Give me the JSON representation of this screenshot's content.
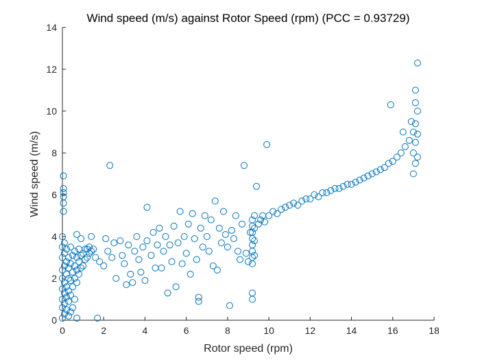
{
  "chart_data": {
    "type": "scatter",
    "title": "Wind speed (m/s) against Rotor Speed (rpm) (PCC = 0.93729)",
    "xlabel": "Rotor speed (rpm)",
    "ylabel": "Wind speed (m/s)",
    "xlim": [
      0,
      18
    ],
    "ylim": [
      0,
      14
    ],
    "xticks": [
      0,
      2,
      4,
      6,
      8,
      10,
      12,
      14,
      16,
      18
    ],
    "yticks": [
      0,
      2,
      4,
      6,
      8,
      10,
      12,
      14
    ],
    "grid": false,
    "marker": "open-circle",
    "color": "#0072BD",
    "series": [
      {
        "points": [
          [
            0.0,
            0.1
          ],
          [
            0.0,
            0.6
          ],
          [
            0.0,
            1.0
          ],
          [
            0.0,
            1.5
          ],
          [
            0.0,
            2.0
          ],
          [
            0.0,
            2.4
          ],
          [
            0.0,
            3.0
          ],
          [
            0.0,
            3.5
          ],
          [
            0.0,
            4.0
          ],
          [
            0.05,
            5.2
          ],
          [
            0.05,
            5.6
          ],
          [
            0.05,
            5.9
          ],
          [
            0.05,
            6.1
          ],
          [
            0.05,
            6.3
          ],
          [
            0.05,
            6.9
          ],
          [
            0.1,
            0.3
          ],
          [
            0.1,
            0.8
          ],
          [
            0.1,
            1.3
          ],
          [
            0.1,
            1.8
          ],
          [
            0.1,
            2.6
          ],
          [
            0.1,
            3.2
          ],
          [
            0.1,
            3.7
          ],
          [
            0.2,
            0.5
          ],
          [
            0.2,
            1.1
          ],
          [
            0.2,
            1.6
          ],
          [
            0.2,
            2.2
          ],
          [
            0.2,
            2.8
          ],
          [
            0.2,
            3.4
          ],
          [
            0.3,
            0.2
          ],
          [
            0.3,
            0.9
          ],
          [
            0.3,
            1.4
          ],
          [
            0.3,
            2.0
          ],
          [
            0.3,
            2.5
          ],
          [
            0.3,
            3.0
          ],
          [
            0.4,
            0.4
          ],
          [
            0.4,
            1.2
          ],
          [
            0.4,
            1.9
          ],
          [
            0.4,
            2.7
          ],
          [
            0.4,
            3.5
          ],
          [
            0.5,
            0.6
          ],
          [
            0.5,
            1.6
          ],
          [
            0.5,
            2.3
          ],
          [
            0.5,
            3.1
          ],
          [
            0.6,
            1.0
          ],
          [
            0.6,
            2.0
          ],
          [
            0.6,
            2.6
          ],
          [
            0.6,
            3.3
          ],
          [
            0.7,
            0.1
          ],
          [
            0.7,
            1.8
          ],
          [
            0.7,
            2.4
          ],
          [
            0.7,
            3.0
          ],
          [
            0.7,
            4.1
          ],
          [
            0.8,
            2.2
          ],
          [
            0.8,
            2.8
          ],
          [
            0.8,
            3.4
          ],
          [
            0.9,
            2.5
          ],
          [
            0.9,
            3.1
          ],
          [
            0.9,
            3.9
          ],
          [
            1.0,
            2.6
          ],
          [
            1.0,
            3.2
          ],
          [
            1.1,
            2.9
          ],
          [
            1.1,
            3.4
          ],
          [
            1.2,
            3.0
          ],
          [
            1.2,
            3.4
          ],
          [
            1.3,
            3.2
          ],
          [
            1.3,
            3.5
          ],
          [
            1.4,
            3.3
          ],
          [
            1.4,
            4.0
          ],
          [
            1.5,
            3.4
          ],
          [
            1.6,
            3.0
          ],
          [
            1.7,
            0.1
          ],
          [
            1.8,
            2.8
          ],
          [
            2.0,
            2.6
          ],
          [
            2.1,
            3.9
          ],
          [
            2.2,
            3.3
          ],
          [
            2.3,
            7.4
          ],
          [
            2.4,
            3.0
          ],
          [
            2.5,
            3.7
          ],
          [
            2.6,
            2.0
          ],
          [
            2.8,
            3.8
          ],
          [
            2.9,
            3.1
          ],
          [
            3.0,
            2.7
          ],
          [
            3.1,
            1.7
          ],
          [
            3.2,
            3.6
          ],
          [
            3.3,
            2.2
          ],
          [
            3.4,
            1.8
          ],
          [
            3.5,
            3.3
          ],
          [
            3.6,
            4.0
          ],
          [
            3.7,
            2.9
          ],
          [
            3.8,
            2.3
          ],
          [
            3.9,
            3.5
          ],
          [
            4.0,
            1.9
          ],
          [
            4.1,
            3.8
          ],
          [
            4.1,
            5.4
          ],
          [
            4.3,
            3.1
          ],
          [
            4.4,
            4.2
          ],
          [
            4.5,
            2.5
          ],
          [
            4.6,
            3.6
          ],
          [
            4.7,
            4.4
          ],
          [
            4.8,
            2.5
          ],
          [
            4.9,
            3.3
          ],
          [
            5.0,
            4.0
          ],
          [
            5.1,
            1.3
          ],
          [
            5.2,
            3.6
          ],
          [
            5.3,
            2.8
          ],
          [
            5.4,
            4.5
          ],
          [
            5.5,
            1.6
          ],
          [
            5.6,
            3.7
          ],
          [
            5.7,
            5.2
          ],
          [
            5.8,
            2.7
          ],
          [
            5.9,
            4.0
          ],
          [
            6.0,
            3.2
          ],
          [
            6.1,
            4.6
          ],
          [
            6.2,
            2.2
          ],
          [
            6.3,
            5.1
          ],
          [
            6.4,
            3.9
          ],
          [
            6.5,
            2.9
          ],
          [
            6.6,
            0.9
          ],
          [
            6.6,
            1.1
          ],
          [
            6.7,
            4.4
          ],
          [
            6.8,
            3.5
          ],
          [
            6.9,
            5.0
          ],
          [
            7.0,
            4.0
          ],
          [
            7.1,
            3.3
          ],
          [
            7.2,
            4.8
          ],
          [
            7.3,
            2.6
          ],
          [
            7.4,
            5.7
          ],
          [
            7.5,
            2.4
          ],
          [
            7.6,
            4.4
          ],
          [
            7.7,
            3.7
          ],
          [
            7.8,
            5.2
          ],
          [
            7.9,
            4.1
          ],
          [
            8.0,
            3.5
          ],
          [
            8.1,
            0.7
          ],
          [
            8.2,
            4.3
          ],
          [
            8.3,
            3.9
          ],
          [
            8.4,
            5.0
          ],
          [
            8.5,
            3.3
          ],
          [
            8.6,
            2.9
          ],
          [
            8.7,
            4.6
          ],
          [
            8.8,
            7.4
          ],
          [
            8.9,
            3.2
          ],
          [
            9.0,
            2.8
          ],
          [
            9.1,
            4.2
          ],
          [
            9.2,
            1.0
          ],
          [
            9.2,
            1.3
          ],
          [
            9.2,
            2.7
          ],
          [
            9.2,
            3.0
          ],
          [
            9.2,
            3.3
          ],
          [
            9.2,
            3.6
          ],
          [
            9.2,
            3.9
          ],
          [
            9.2,
            4.2
          ],
          [
            9.2,
            4.5
          ],
          [
            9.2,
            4.8
          ],
          [
            9.3,
            3.1
          ],
          [
            9.3,
            3.8
          ],
          [
            9.3,
            4.4
          ],
          [
            9.3,
            5.0
          ],
          [
            9.4,
            6.4
          ],
          [
            9.5,
            4.6
          ],
          [
            9.6,
            4.8
          ],
          [
            9.7,
            5.0
          ],
          [
            9.8,
            4.7
          ],
          [
            9.9,
            8.4
          ],
          [
            10.0,
            5.0
          ],
          [
            10.2,
            5.2
          ],
          [
            10.4,
            5.1
          ],
          [
            10.6,
            5.3
          ],
          [
            10.8,
            5.4
          ],
          [
            11.0,
            5.5
          ],
          [
            11.2,
            5.6
          ],
          [
            11.4,
            5.5
          ],
          [
            11.6,
            5.7
          ],
          [
            11.8,
            5.8
          ],
          [
            12.0,
            5.8
          ],
          [
            12.2,
            6.0
          ],
          [
            12.4,
            5.9
          ],
          [
            12.6,
            6.1
          ],
          [
            12.8,
            6.1
          ],
          [
            13.0,
            6.2
          ],
          [
            13.2,
            6.3
          ],
          [
            13.4,
            6.3
          ],
          [
            13.6,
            6.4
          ],
          [
            13.8,
            6.5
          ],
          [
            14.0,
            6.5
          ],
          [
            14.2,
            6.6
          ],
          [
            14.4,
            6.7
          ],
          [
            14.6,
            6.8
          ],
          [
            14.8,
            6.9
          ],
          [
            15.0,
            7.0
          ],
          [
            15.2,
            7.1
          ],
          [
            15.4,
            7.2
          ],
          [
            15.6,
            7.3
          ],
          [
            15.8,
            7.5
          ],
          [
            15.9,
            10.3
          ],
          [
            16.0,
            7.6
          ],
          [
            16.2,
            7.8
          ],
          [
            16.4,
            8.0
          ],
          [
            16.5,
            9.0
          ],
          [
            16.6,
            8.3
          ],
          [
            16.8,
            8.6
          ],
          [
            16.9,
            9.5
          ],
          [
            17.0,
            7.0
          ],
          [
            17.0,
            8.0
          ],
          [
            17.0,
            9.0
          ],
          [
            17.1,
            7.5
          ],
          [
            17.1,
            8.5
          ],
          [
            17.1,
            9.4
          ],
          [
            17.1,
            10.4
          ],
          [
            17.1,
            11.0
          ],
          [
            17.2,
            7.8
          ],
          [
            17.2,
            8.9
          ],
          [
            17.2,
            10.0
          ],
          [
            17.2,
            12.3
          ]
        ]
      }
    ]
  }
}
